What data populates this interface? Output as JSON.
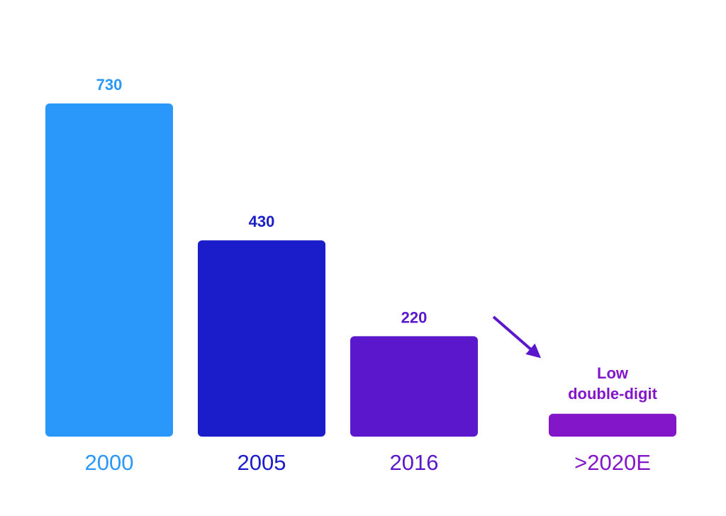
{
  "chart_data": {
    "type": "bar",
    "categories": [
      "2000",
      "2005",
      "2016",
      ">2020E"
    ],
    "values": [
      730,
      430,
      220,
      null
    ],
    "value_labels": [
      "730",
      "430",
      "220",
      "Low double-digit"
    ],
    "estimated_values": [
      null,
      null,
      null,
      50
    ],
    "colors": [
      "#2a98fa",
      "#1a1dc9",
      "#5b17cb",
      "#8416c9"
    ],
    "ylim": [
      0,
      800
    ],
    "grid": false,
    "legend": "none",
    "title": "",
    "xlabel": "",
    "ylabel": "",
    "annotations": [
      {
        "type": "arrow",
        "from_category": "2016",
        "to_category": ">2020E",
        "color": "#5b17cb"
      }
    ]
  }
}
